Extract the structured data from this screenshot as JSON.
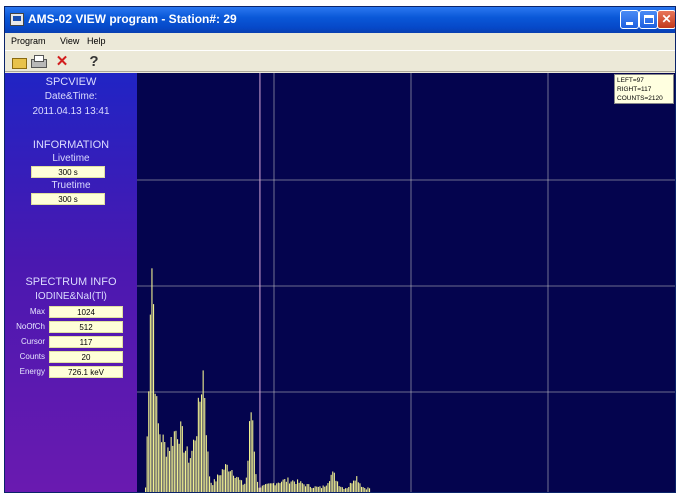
{
  "window": {
    "title": "AMS-02 VIEW program - Station#: 29"
  },
  "menu": {
    "items": [
      "Program",
      "View",
      "Help"
    ]
  },
  "toolbar": {
    "icons": [
      "open-icon",
      "print-icon",
      "stop-icon",
      "help-icon"
    ],
    "help_glyph": "?"
  },
  "left_panel": {
    "app_name": "SPCVIEW",
    "datetime_label": "Date&Time:",
    "datetime": "2011.04.13 13:41",
    "information_title": "INFORMATION",
    "livetime_label": "Livetime",
    "livetime": "300 s",
    "truetime_label": "Truetime",
    "truetime": "300 s",
    "spectrum_title": "SPECTRUM INFO",
    "detector": "IODINE&NaI(Tl)",
    "rows": [
      {
        "label": "Max",
        "value": "1024"
      },
      {
        "label": "NoOfCh",
        "value": "512"
      },
      {
        "label": "Cursor",
        "value": "117"
      },
      {
        "label": "Counts",
        "value": "20"
      },
      {
        "label": "Energy",
        "value": "726.1 keV"
      }
    ]
  },
  "spectrum": {
    "readout": {
      "left": "LEFT=97",
      "right": "RIGHT=117",
      "counts": "COUNTS=2120"
    },
    "colors": {
      "background": "#04044e",
      "grid": "#c8c8c8",
      "bars": "#f0f090",
      "cursor": "#d8a8d8"
    },
    "cursor_channel": 117,
    "channel_range": [
      0,
      512
    ],
    "counts_max": 1024
  }
}
